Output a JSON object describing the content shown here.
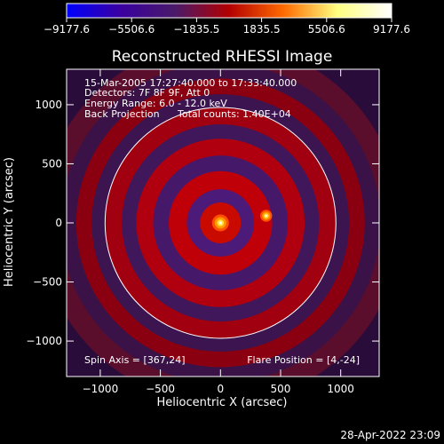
{
  "chart_data": {
    "type": "heatmap",
    "title": "Reconstructed RHESSI Image",
    "xlabel": "Heliocentric X (arcsec)",
    "ylabel": "Heliocentric Y (arcsec)",
    "xlim": [
      -1280,
      1320
    ],
    "ylim": [
      -1300,
      1300
    ],
    "x_ticks": [
      -1000,
      -500,
      0,
      500,
      1000
    ],
    "y_ticks": [
      -1000,
      -500,
      0,
      500,
      1000
    ],
    "x_tick_labels": [
      "−1000",
      "−500",
      "0",
      "500",
      "1000"
    ],
    "y_tick_labels": [
      "−1000",
      "−500",
      "0",
      "500",
      "1000"
    ],
    "colorbar": {
      "range": [
        -9177.6,
        9177.6
      ],
      "tick_values": [
        -9177.6,
        -5506.6,
        -1835.5,
        1835.5,
        5506.6,
        9177.6
      ],
      "tick_labels": [
        "−9177.6",
        "−5506.6",
        "−1835.5",
        "1835.5",
        "5506.6",
        "9177.6"
      ],
      "colors": [
        "#0000ff",
        "#3a00a0",
        "#4a1a6a",
        "#b30000",
        "#ff6a00",
        "#ffff80",
        "#ffffff"
      ]
    },
    "sources": [
      {
        "x": 0,
        "y": 0,
        "peak": 9177.6
      },
      {
        "x": 380,
        "y": 60,
        "peak": 6500
      }
    ],
    "solar_limb_radius": 960,
    "info_lines": [
      "15-Mar-2005 17:27:40.000 to 17:33:40.000",
      "Detectors: 7F 8F 9F, Att 0",
      "Energy Range: 6.0 - 12.0 keV"
    ],
    "back_projection": "Back Projection",
    "total_counts": "Total counts: 1.40E+04",
    "spin_axis": "Spin Axis = [367,24]",
    "flare_position": "Flare Position = [4,-24]",
    "timestamp": "28-Apr-2022 23:09"
  }
}
